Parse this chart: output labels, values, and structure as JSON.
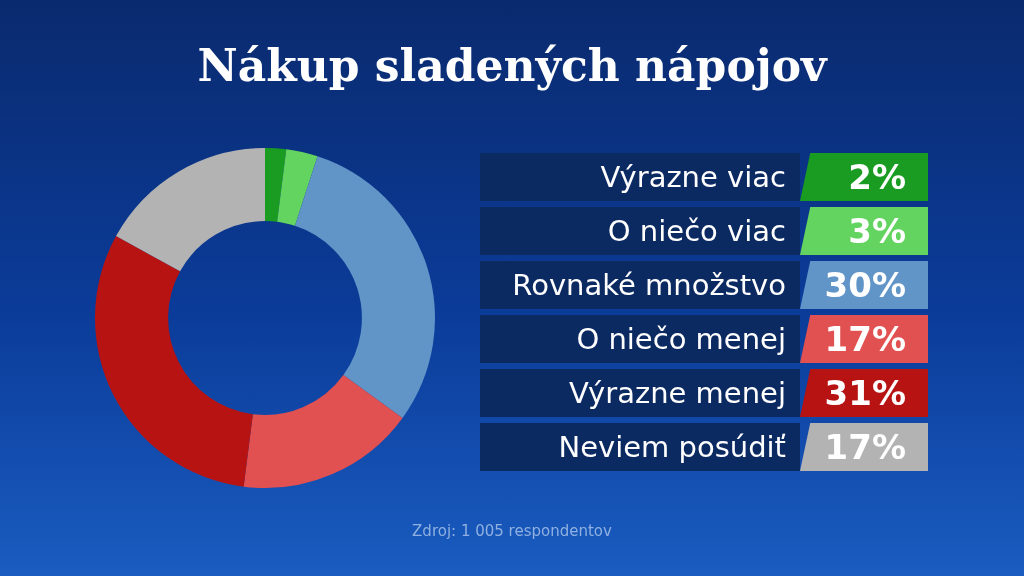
{
  "chart_data": {
    "type": "donut",
    "title": "Nákup sladených nápojov",
    "categories": [
      "Výrazne viac",
      "O niečo viac",
      "Rovnaké množstvo",
      "O niečo menej",
      "Výrazne menej",
      "Neviem posúdiť"
    ],
    "values": [
      2,
      3,
      30,
      17,
      31,
      17
    ],
    "value_labels": [
      "2%",
      "3%",
      "30%",
      "17%",
      "31%",
      "17%"
    ],
    "colors": [
      "#1a9c22",
      "#63d45f",
      "#6195c8",
      "#e25151",
      "#b81313",
      "#b3b3b3"
    ],
    "legend": "right",
    "annotations": [
      "Zdroj: 1 005 respondentov"
    ]
  }
}
